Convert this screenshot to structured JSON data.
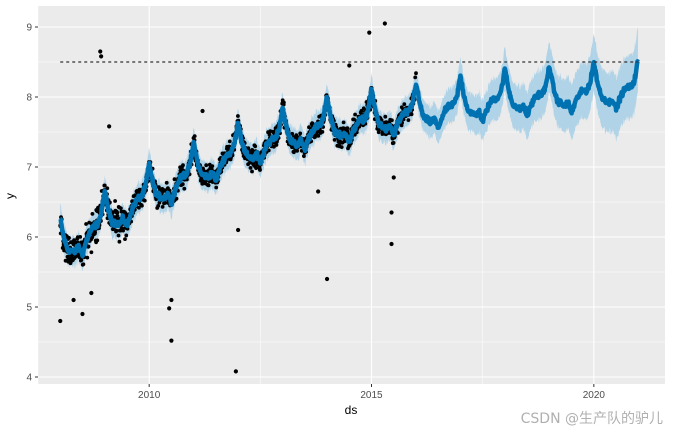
{
  "chart_data": {
    "type": "scatter",
    "title": "",
    "xlabel": "ds",
    "ylabel": "y",
    "xlim": [
      2007.5,
      2021.6
    ],
    "ylim": [
      3.9,
      9.3
    ],
    "x_ticks": [
      2010,
      2015,
      2020
    ],
    "x_tick_labels": [
      "2010",
      "2015",
      "2020"
    ],
    "y_ticks": [
      4,
      5,
      6,
      7,
      8,
      9
    ],
    "y_tick_labels": [
      "4",
      "5",
      "6",
      "7",
      "8",
      "9"
    ],
    "grid": true,
    "legend": "none",
    "colors": {
      "panel_background": "#ebebeb",
      "grid": "#ffffff",
      "forecast_line": "#0072b2",
      "uncertainty_band": "#a6cfe6",
      "points": "#000000",
      "cap_line": "#333333"
    },
    "capacity": {
      "value": 8.5,
      "x_start": 2008.0,
      "x_end": 2021.0,
      "style": "dashed"
    },
    "history_end": 2016.0,
    "forecast_end": 2021.0,
    "trend": {
      "x": [
        2008.0,
        2008.5,
        2009.0,
        2009.5,
        2010.0,
        2010.5,
        2011.0,
        2011.5,
        2012.0,
        2012.5,
        2013.0,
        2013.5,
        2014.0,
        2014.5,
        2015.0,
        2015.5,
        2016.0,
        2017.0,
        2018.0,
        2019.0,
        2020.0,
        2021.0
      ],
      "y": [
        5.8,
        6.0,
        6.2,
        6.4,
        6.6,
        6.75,
        6.9,
        7.05,
        7.2,
        7.3,
        7.4,
        7.5,
        7.55,
        7.6,
        7.65,
        7.7,
        7.75,
        7.85,
        7.95,
        8.0,
        8.05,
        8.1
      ]
    },
    "yearly_seasonality": [
      0.45,
      0.15,
      -0.05,
      -0.1,
      -0.15,
      -0.1,
      -0.25,
      -0.1,
      0.0,
      0.05,
      0.05,
      0.15
    ],
    "outliers": [
      {
        "x": 2008.9,
        "y": 8.65
      },
      {
        "x": 2008.92,
        "y": 8.58
      },
      {
        "x": 2009.1,
        "y": 7.58
      },
      {
        "x": 2014.95,
        "y": 8.92
      },
      {
        "x": 2015.3,
        "y": 9.05
      },
      {
        "x": 2014.5,
        "y": 8.45
      },
      {
        "x": 2008.0,
        "y": 4.8
      },
      {
        "x": 2008.3,
        "y": 5.1
      },
      {
        "x": 2008.5,
        "y": 4.9
      },
      {
        "x": 2008.7,
        "y": 5.2
      },
      {
        "x": 2010.5,
        "y": 4.52
      },
      {
        "x": 2010.5,
        "y": 5.1
      },
      {
        "x": 2010.45,
        "y": 4.98
      },
      {
        "x": 2011.95,
        "y": 4.08
      },
      {
        "x": 2014.0,
        "y": 5.4
      },
      {
        "x": 2015.45,
        "y": 5.9
      },
      {
        "x": 2015.45,
        "y": 6.35
      },
      {
        "x": 2015.5,
        "y": 6.85
      },
      {
        "x": 2012.0,
        "y": 6.1
      },
      {
        "x": 2011.2,
        "y": 7.8
      },
      {
        "x": 2013.8,
        "y": 6.65
      }
    ]
  },
  "watermark": "CSDN @生产队的驴儿"
}
